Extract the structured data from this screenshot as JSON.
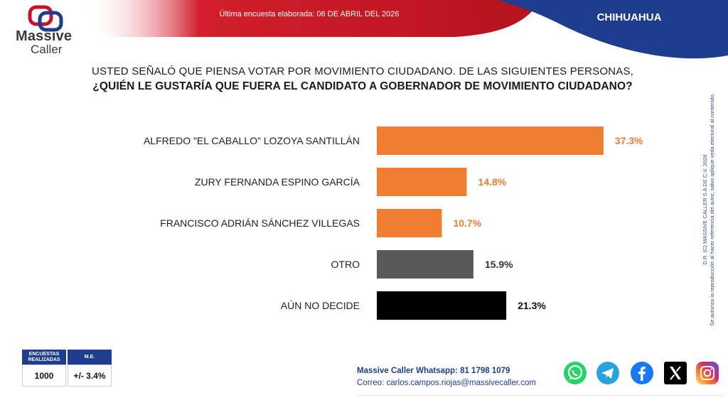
{
  "header": {
    "last_survey": "Última encuesta elaborada: 06 DE ABRIL DEL 2026",
    "state": "CHIHUAHUA",
    "brand_line1": "Massive",
    "brand_line2": "Caller",
    "brand_colors": {
      "red": "#c8102e",
      "navy": "#1f3d8f"
    }
  },
  "question": {
    "line1": "USTED SEÑALÓ QUE PIENSA VOTAR POR MOVIMIENTO CIUDADANO. DE LAS SIGUIENTES PERSONAS,",
    "line2": "¿QUIÉN LE GUSTARÍA QUE FUERA EL CANDIDATO A GOBERNADOR DE MOVIMIENTO CIUDADANO?"
  },
  "chart_data": {
    "type": "bar",
    "orientation": "horizontal",
    "categories": [
      "ALFREDO \"EL CABALLO\" LOZOYA SANTILLÁN",
      "ZURY FERNANDA ESPINO GARCÍA",
      "FRANCISCO ADRIÁN SÁNCHEZ VILLEGAS",
      "OTRO",
      "AÚN NO DECIDE"
    ],
    "values": [
      37.3,
      14.8,
      10.7,
      15.9,
      21.3
    ],
    "value_labels": [
      "37.3%",
      "14.8%",
      "10.7%",
      "15.9%",
      "21.3%"
    ],
    "bar_colors": [
      "#ef7d32",
      "#ef7d32",
      "#ef7d32",
      "#595959",
      "#000000"
    ],
    "label_colors": [
      "#ef7d32",
      "#ef7d32",
      "#ef7d32",
      "#333333",
      "#111111"
    ],
    "grid": false,
    "legend": "none"
  },
  "survey_box": {
    "header_count": "ENCUESTAS REALIZADAS",
    "header_me": "M.E.",
    "count": "1000",
    "me": "+/- 3.4%"
  },
  "side_note": {
    "line1": "D.R. (C) MASSIVE CALLER S.A DE C.V. 2026",
    "line2": "Se autoriza la reproducción al hacer referencia del autor, salvo aplique veda electoral al contenido."
  },
  "contact": {
    "whatsapp": "Massive Caller Whatsapp: 81 1798 1079",
    "email": "Correo: carlos.campos.riojas@massivecaller.com"
  },
  "social_icons": [
    "whatsapp-icon",
    "telegram-icon",
    "facebook-icon",
    "x-icon",
    "instagram-icon"
  ]
}
